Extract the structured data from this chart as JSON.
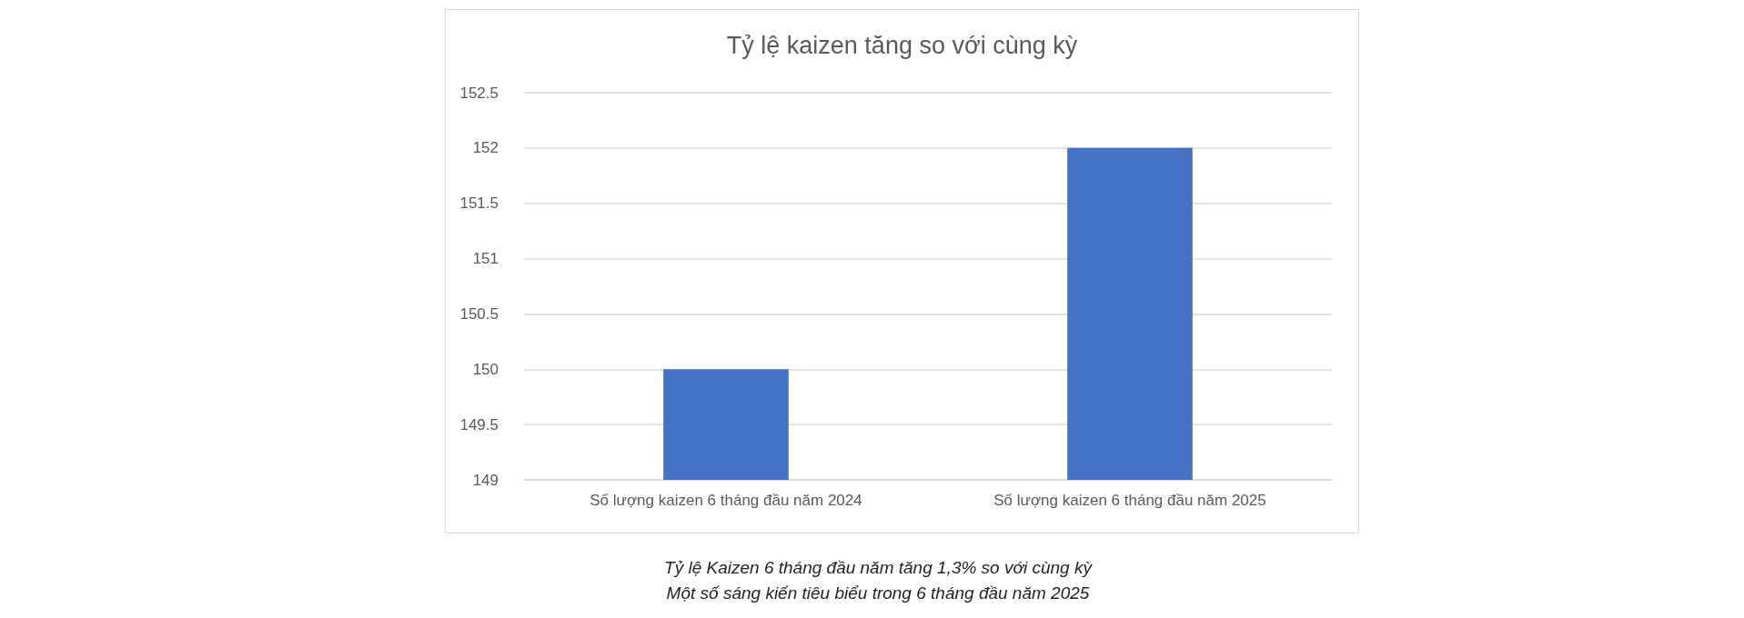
{
  "chart_data": {
    "type": "bar",
    "title": "Tỷ lệ kaizen tăng so với cùng kỳ",
    "categories": [
      "Số lượng kaizen 6 tháng đầu năm 2024",
      "Số lượng kaizen 6 tháng đầu năm 2025"
    ],
    "values": [
      150,
      152
    ],
    "color": "#4472c4",
    "ylim": [
      149,
      152.5
    ],
    "yticks": [
      149,
      149.5,
      150,
      150.5,
      151,
      151.5,
      152,
      152.5
    ],
    "grid": "y",
    "annotations": [
      "Tỷ lệ Kaizen 6 tháng đầu năm tăng 1,3% so với cùng kỳ",
      "Một số sáng kiến tiêu biểu trong 6 tháng đầu năm 2025"
    ]
  }
}
